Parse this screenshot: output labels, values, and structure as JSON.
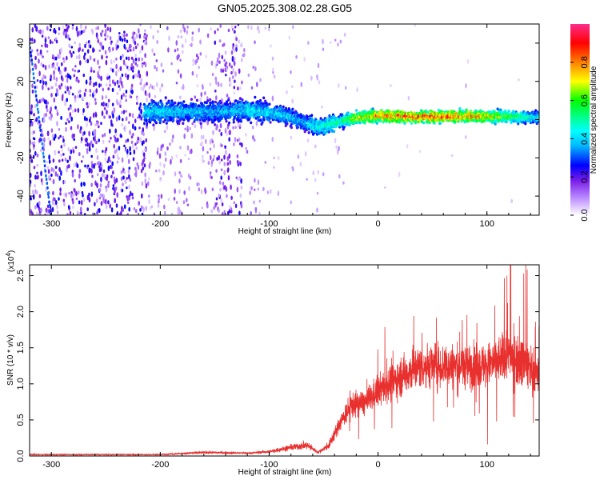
{
  "title": "GN05.2025.308.02.28.G05",
  "chart_data": [
    {
      "type": "heatmap",
      "title": "GN05.2025.308.02.28.G05",
      "xlabel": "Height of straight line (km)",
      "ylabel": "Frequency (Hz)",
      "xlim": [
        -320,
        148
      ],
      "ylim": [
        -50,
        50
      ],
      "xticks": [
        -300,
        -200,
        -100,
        0,
        100
      ],
      "yticks": [
        -40,
        -20,
        0,
        20,
        40
      ],
      "colorbar": {
        "label": "Normalized spectral amplitude",
        "range": [
          0.0,
          1.0
        ],
        "ticks": [
          "0.0",
          "0.2",
          "0.4",
          "0.6",
          "0.8"
        ]
      },
      "ridge": [
        {
          "x": -210,
          "f": 4,
          "amp": 0.45
        },
        {
          "x": -150,
          "f": 4,
          "amp": 0.4
        },
        {
          "x": -120,
          "f": 5,
          "amp": 0.45
        },
        {
          "x": -90,
          "f": 3,
          "amp": 0.45
        },
        {
          "x": -70,
          "f": -1,
          "amp": 0.4
        },
        {
          "x": -55,
          "f": -4,
          "amp": 0.5
        },
        {
          "x": -35,
          "f": -1,
          "amp": 0.55
        },
        {
          "x": -20,
          "f": 1,
          "amp": 0.75
        },
        {
          "x": 0,
          "f": 2,
          "amp": 0.85
        },
        {
          "x": 30,
          "f": 1.5,
          "amp": 0.9
        },
        {
          "x": 60,
          "f": 1.5,
          "amp": 0.9
        },
        {
          "x": 90,
          "f": 1.8,
          "amp": 0.85
        },
        {
          "x": 120,
          "f": 1.5,
          "amp": 0.65
        },
        {
          "x": 148,
          "f": 1,
          "amp": 0.45
        }
      ]
    },
    {
      "type": "line",
      "xlabel": "Height of straight line (km)",
      "ylabel": "SNR (10 * v/v)",
      "yscale_label": "(x10",
      "yscale_exponent": "4",
      "xlim": [
        -320,
        148
      ],
      "ylim": [
        0,
        2.65
      ],
      "xticks": [
        -300,
        -200,
        -100,
        0,
        100
      ],
      "yticks": [
        "0.0",
        "0.5",
        "1.0",
        "1.5",
        "2.0",
        "2.5"
      ],
      "series": [
        {
          "name": "SNR",
          "color": "#e8302e",
          "envelope": [
            {
              "x": -320,
              "y": 0.02
            },
            {
              "x": -200,
              "y": 0.02
            },
            {
              "x": -160,
              "y": 0.05
            },
            {
              "x": -120,
              "y": 0.04
            },
            {
              "x": -100,
              "y": 0.06
            },
            {
              "x": -80,
              "y": 0.12
            },
            {
              "x": -65,
              "y": 0.15
            },
            {
              "x": -55,
              "y": 0.05
            },
            {
              "x": -45,
              "y": 0.15
            },
            {
              "x": -35,
              "y": 0.45
            },
            {
              "x": -25,
              "y": 0.7
            },
            {
              "x": -10,
              "y": 0.75
            },
            {
              "x": 0,
              "y": 0.9
            },
            {
              "x": 20,
              "y": 1.1
            },
            {
              "x": 40,
              "y": 1.25
            },
            {
              "x": 70,
              "y": 1.25
            },
            {
              "x": 100,
              "y": 1.25
            },
            {
              "x": 120,
              "y": 1.4
            },
            {
              "x": 135,
              "y": 1.3
            },
            {
              "x": 148,
              "y": 1.1
            }
          ]
        }
      ]
    }
  ]
}
